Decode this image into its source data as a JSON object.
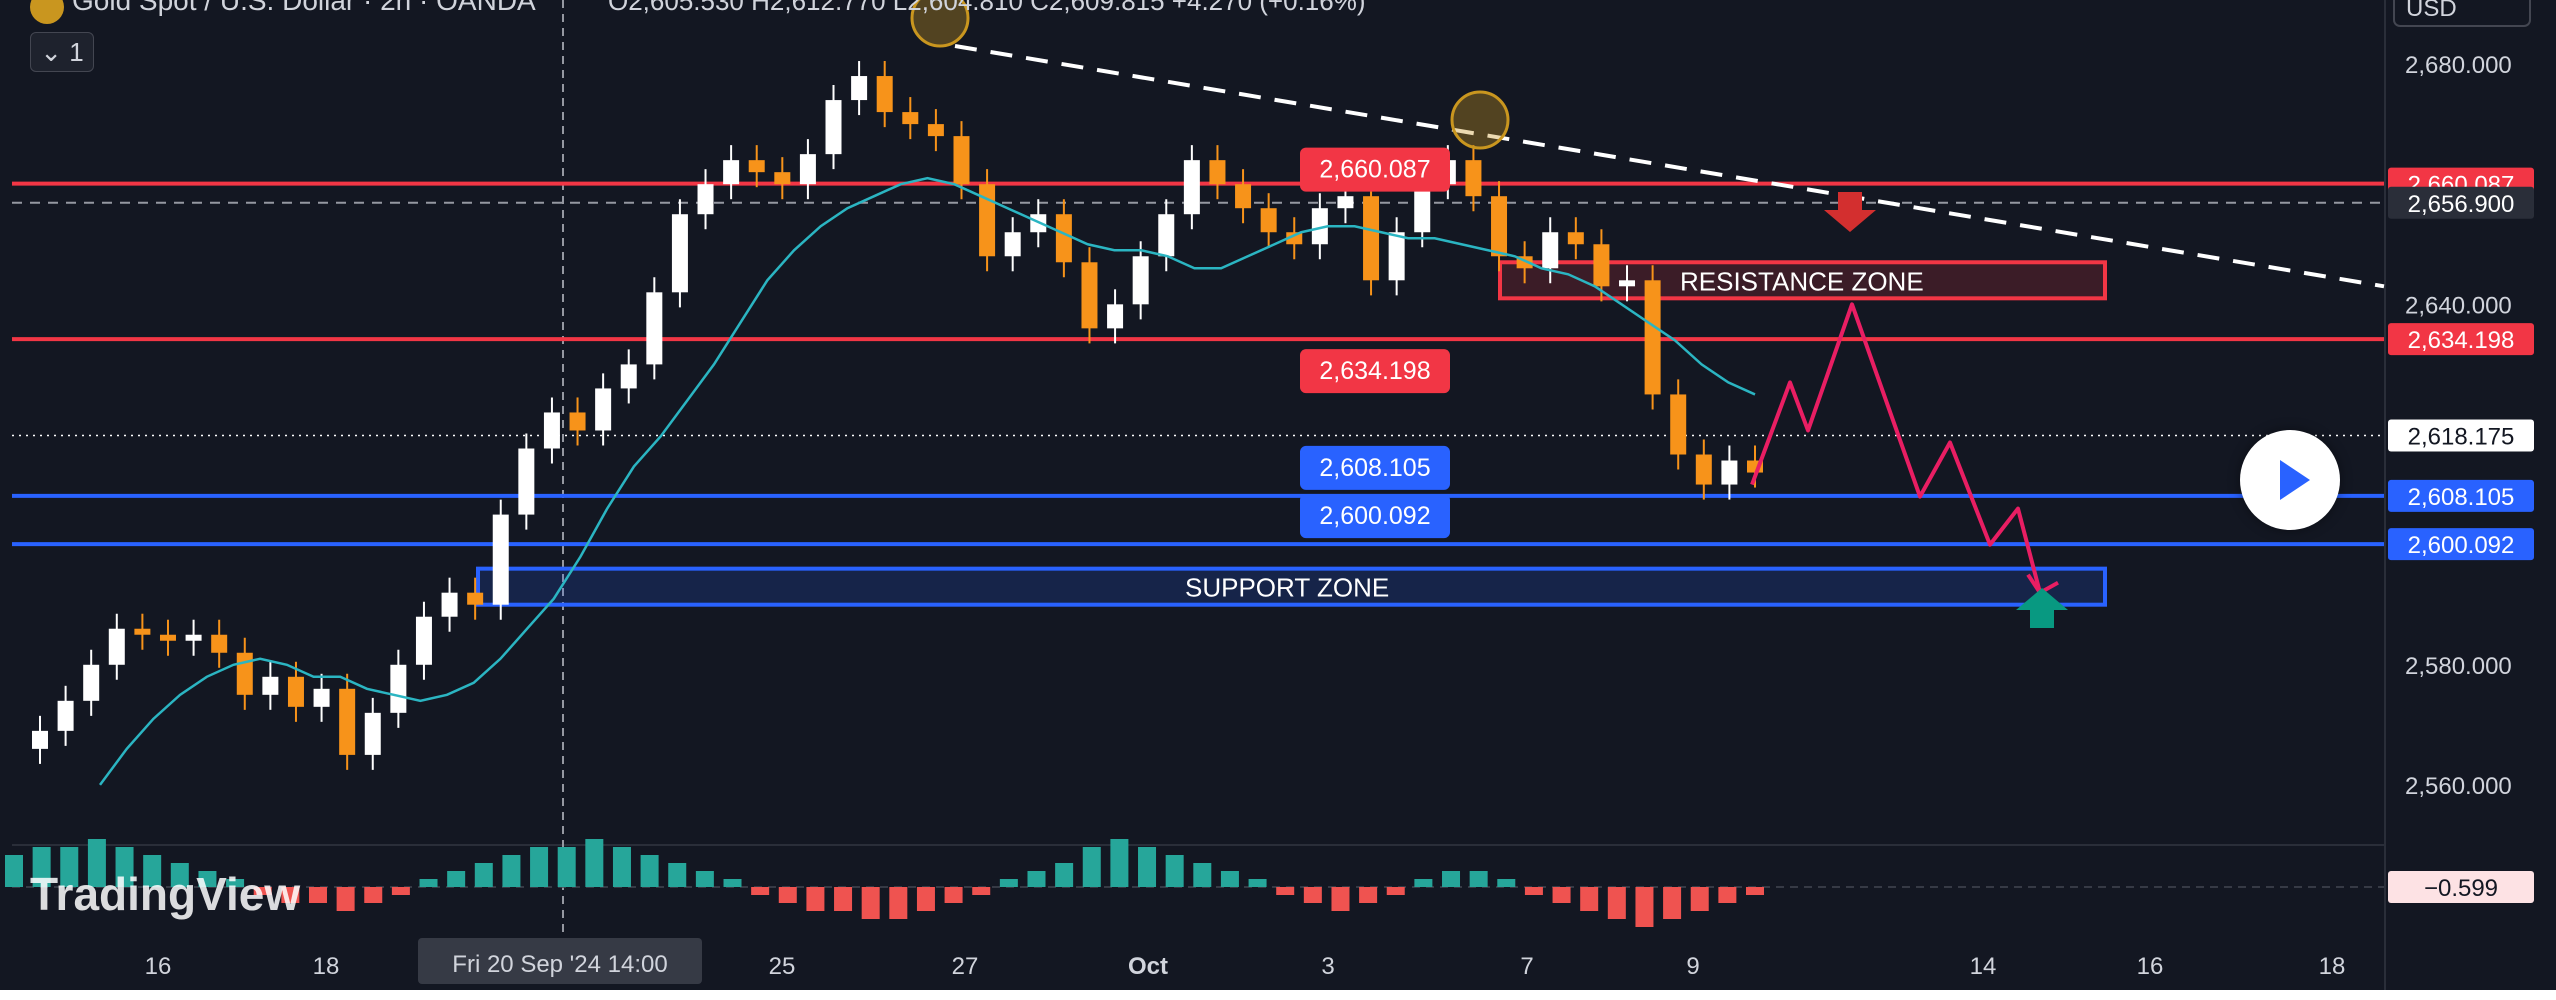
{
  "header": {
    "symbol": "Gold Spot / U.S. Dollar · 2h · OANDA",
    "ohlc": "O2,605.530 H2,612.770 L2,604.810 C2,609.815 +4.270 (+0.16%)",
    "currency": "USD",
    "interval_toggle": "1"
  },
  "watermark": "TradingView",
  "colors": {
    "background": "#131722",
    "bull_candle": "#ffffff",
    "bear_candle": "#f7931a",
    "ema": "#2bb5c2",
    "resistance": "#f23645",
    "support": "#2962ff",
    "trendline": "#ffffff",
    "projection": "#e91e63",
    "down_arrow": "#d32f2f",
    "up_arrow": "#089981",
    "macd_pos": "#26a69a",
    "macd_neg": "#ef5350"
  },
  "chart_data": {
    "type": "line",
    "title": "Gold Spot / U.S. Dollar · 2h · OANDA",
    "ylim": [
      2550,
      2684
    ],
    "x_tick_labels": [
      "16",
      "18",
      "25",
      "27",
      "Oct",
      "3",
      "7",
      "9",
      "14",
      "16",
      "18"
    ],
    "y_tick_labels": [
      "2,680.000",
      "2,640.000",
      "2,580.000",
      "2,560.000"
    ],
    "crosshair_label": "Fri 20 Sep '24   14:00",
    "price_closes": [
      2569,
      2574,
      2580,
      2586,
      2585,
      2584,
      2585,
      2582,
      2575,
      2578,
      2573,
      2576,
      2565,
      2572,
      2580,
      2588,
      2592,
      2590,
      2605,
      2616,
      2622,
      2619,
      2626,
      2630,
      2642,
      2655,
      2660,
      2664,
      2662,
      2660,
      2665,
      2674,
      2678,
      2672,
      2670,
      2668,
      2660,
      2648,
      2652,
      2655,
      2647,
      2636,
      2640,
      2648,
      2655,
      2664,
      2660,
      2656,
      2652,
      2650,
      2656,
      2658,
      2644,
      2652,
      2660,
      2664,
      2658,
      2648,
      2646,
      2652,
      2650,
      2643,
      2644,
      2625,
      2615,
      2610,
      2614,
      2612
    ],
    "ema_values": [
      2560,
      2566,
      2571,
      2575,
      2578,
      2580,
      2581,
      2580,
      2578,
      2578,
      2576,
      2575,
      2574,
      2575,
      2577,
      2581,
      2586,
      2591,
      2598,
      2606,
      2613,
      2618,
      2624,
      2630,
      2637,
      2644,
      2649,
      2653,
      2656,
      2658,
      2660,
      2661,
      2660,
      2658,
      2656,
      2654,
      2652,
      2650,
      2649,
      2649,
      2648,
      2646,
      2646,
      2648,
      2650,
      2652,
      2653,
      2653,
      2652,
      2651,
      2651,
      2650,
      2649,
      2648,
      2646,
      2645,
      2643,
      2640,
      2637,
      2634,
      2630,
      2627,
      2625
    ],
    "levels": [
      {
        "price": 2660.087,
        "label": "2,660.087",
        "kind": "resistance"
      },
      {
        "price": 2634.198,
        "label": "2,634.198",
        "kind": "resistance"
      },
      {
        "price": 2608.105,
        "label": "2,608.105",
        "kind": "support"
      },
      {
        "price": 2600.092,
        "label": "2,600.092",
        "kind": "support"
      }
    ],
    "axis_badges": [
      {
        "price": 2660.087,
        "text": "2,660.087"
      },
      {
        "price": 2656.9,
        "text": "2,656.900"
      },
      {
        "price": 2634.198,
        "text": "2,634.198"
      },
      {
        "price": 2618.175,
        "text": "2,618.175"
      },
      {
        "price": 2608.105,
        "text": "2,608.105"
      },
      {
        "price": 2600.092,
        "text": "2,600.092"
      }
    ],
    "dashed_price_line": 2656.9,
    "zones": [
      {
        "name": "RESISTANCE ZONE",
        "price_top": 2647,
        "price_bottom": 2641
      },
      {
        "name": "SUPPORT ZONE",
        "price_top": 2596,
        "price_bottom": 2590
      }
    ],
    "projection_path": [
      2610,
      2627,
      2619,
      2640,
      2608,
      2617,
      2600,
      2606,
      2592
    ],
    "macd": {
      "value_label": "−0.599",
      "histogram": [
        4,
        5,
        5,
        6,
        5,
        4,
        3,
        2,
        1,
        -1,
        -2,
        -2,
        -3,
        -2,
        -1,
        1,
        2,
        3,
        4,
        5,
        5,
        6,
        5,
        4,
        3,
        2,
        1,
        -1,
        -2,
        -3,
        -3,
        -4,
        -4,
        -3,
        -2,
        -1,
        1,
        2,
        3,
        5,
        6,
        5,
        4,
        3,
        2,
        1,
        -1,
        -2,
        -3,
        -2,
        -1,
        1,
        2,
        2,
        1,
        -1,
        -2,
        -3,
        -4,
        -5,
        -4,
        -3,
        -2,
        -1
      ]
    }
  }
}
